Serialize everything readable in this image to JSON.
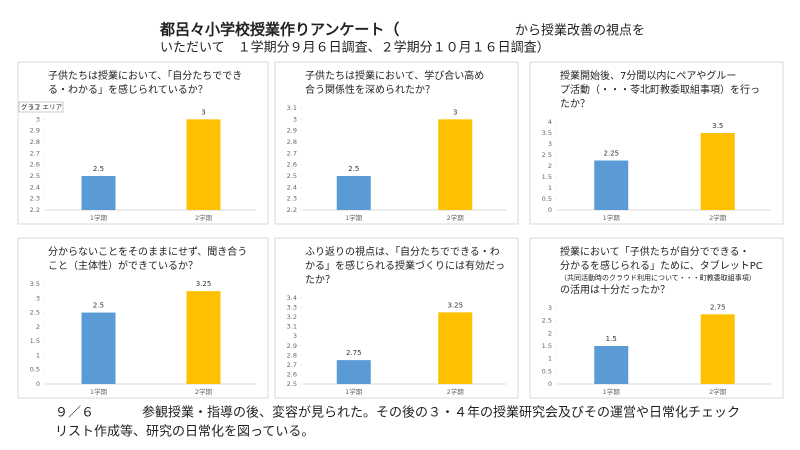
{
  "header": {
    "title": "都呂々小学校授業作りアンケート（",
    "title_rest": "から授業改善の視点を",
    "line2": "いただいて　１学期分９月６日調査、２学期分１０月１６日調査）"
  },
  "footer": {
    "date": "９／６",
    "line1": "参観授業・指導の後、変容が見られた。その後の３・４年の授業研究会及びその運営や日常化チェック",
    "line2": "リスト作成等、研究の日常化を図っている。"
  },
  "chart_data": [
    {
      "type": "bar",
      "title": [
        "子供たちは授業において、「自分たちででき",
        "る・わかる」を感じられているか？"
      ],
      "tooltip": "グラフ エリア",
      "categories": [
        "1学期",
        "2学期"
      ],
      "values": [
        2.5,
        3
      ],
      "colors": [
        "#5b9bd5",
        "#ffc000"
      ],
      "ylim": [
        2.2,
        3.1
      ],
      "yticks": [
        2.2,
        2.3,
        2.4,
        2.5,
        2.6,
        2.7,
        2.8,
        2.9,
        3,
        3.1
      ]
    },
    {
      "type": "bar",
      "title": [
        "子供たちは授業において、学び合い高め",
        "合う関係性を深められたか？"
      ],
      "categories": [
        "1学期",
        "2学期"
      ],
      "values": [
        2.5,
        3
      ],
      "colors": [
        "#5b9bd5",
        "#ffc000"
      ],
      "ylim": [
        2.2,
        3.1
      ],
      "yticks": [
        2.2,
        2.3,
        2.4,
        2.5,
        2.6,
        2.7,
        2.8,
        2.9,
        3,
        3.1
      ]
    },
    {
      "type": "bar",
      "title": [
        "授業開始後、7分間以内にペアやグルー",
        "プ活動（・・・苓北町教委取組事項）を行っ",
        "たか？"
      ],
      "categories": [
        "1学期",
        "2学期"
      ],
      "values": [
        2.25,
        3.5
      ],
      "colors": [
        "#5b9bd5",
        "#ffc000"
      ],
      "ylim": [
        0,
        4
      ],
      "yticks": [
        0,
        0.5,
        1,
        1.5,
        2,
        2.5,
        3,
        3.5,
        4
      ]
    },
    {
      "type": "bar",
      "title": [
        "分からないことをそのままにせず、聞き合う",
        "こと（主体性）ができているか？"
      ],
      "categories": [
        "1学期",
        "2学期"
      ],
      "values": [
        2.5,
        3.25
      ],
      "colors": [
        "#5b9bd5",
        "#ffc000"
      ],
      "ylim": [
        0,
        3.5
      ],
      "yticks": [
        0,
        0.5,
        1,
        1.5,
        2,
        2.5,
        3,
        3.5
      ]
    },
    {
      "type": "bar",
      "title": [
        "ふり返りの視点は、「自分たちでできる・わ",
        "かる」を感じられる授業づくりには有効だっ",
        "たか？"
      ],
      "categories": [
        "1学期",
        "2学期"
      ],
      "values": [
        2.75,
        3.25
      ],
      "colors": [
        "#5b9bd5",
        "#ffc000"
      ],
      "ylim": [
        2.5,
        3.4
      ],
      "yticks": [
        2.5,
        2.6,
        2.7,
        2.8,
        2.9,
        3,
        3.1,
        3.2,
        3.3,
        3.4
      ]
    },
    {
      "type": "bar",
      "title": [
        "授業において「子供たちが自分でできる・",
        "分かるを感じられる」ために、タブレットPC",
        "の活用は十分だったか？"
      ],
      "note": "（共同活動時のクラウド利用について・・・町教委取組事項）",
      "categories": [
        "1学期",
        "2学期"
      ],
      "values": [
        1.5,
        2.75
      ],
      "colors": [
        "#5b9bd5",
        "#ffc000"
      ],
      "ylim": [
        0,
        3
      ],
      "yticks": [
        0,
        0.5,
        1,
        1.5,
        2,
        2.5,
        3
      ]
    }
  ]
}
